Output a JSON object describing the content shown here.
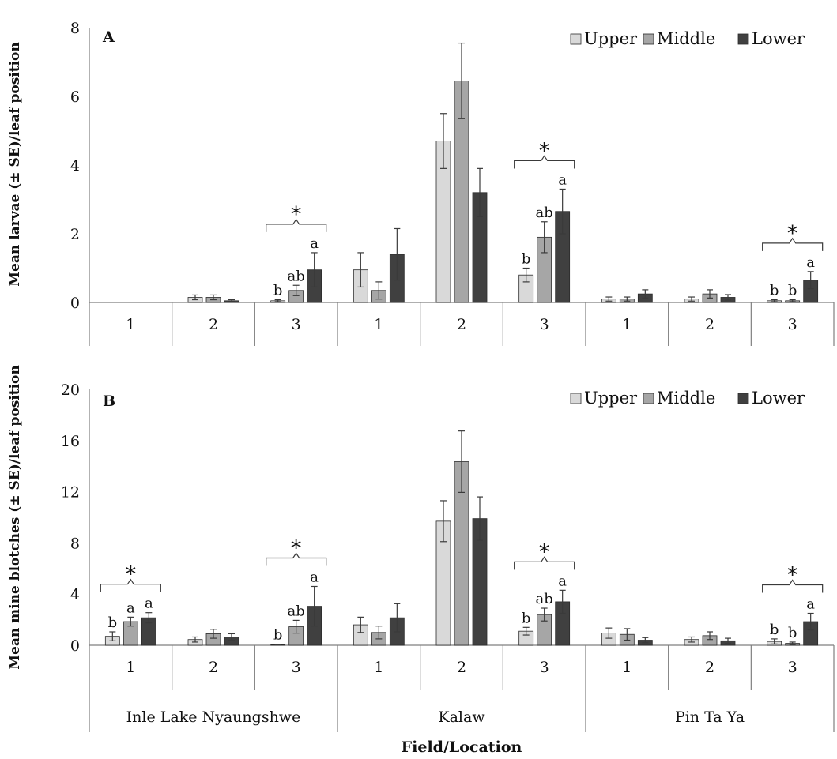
{
  "chart_data": [
    {
      "type": "bar",
      "panel_label": "A",
      "ylabel": "Mean larvae (± SE)/leaf position",
      "ylim": [
        0,
        8
      ],
      "yticks": [
        "0",
        "2",
        "4",
        "6",
        "8"
      ],
      "categories": [
        "1",
        "2",
        "3",
        "1",
        "2",
        "3",
        "1",
        "2",
        "3"
      ],
      "legend_position": "top-right",
      "series": [
        {
          "name": "Upper",
          "color": "#d9d9d9",
          "values": [
            0,
            0.15,
            0.05,
            0.95,
            4.7,
            0.8,
            0.1,
            0.1,
            0.05
          ],
          "errors": [
            0,
            0.07,
            0.03,
            0.5,
            0.8,
            0.2,
            0.06,
            0.06,
            0.03
          ]
        },
        {
          "name": "Middle",
          "color": "#a6a6a6",
          "values": [
            0,
            0.15,
            0.35,
            0.35,
            6.45,
            1.9,
            0.1,
            0.25,
            0.05
          ],
          "errors": [
            0,
            0.07,
            0.15,
            0.25,
            1.1,
            0.45,
            0.06,
            0.12,
            0.03
          ]
        },
        {
          "name": "Lower",
          "color": "#404040",
          "values": [
            0,
            0.05,
            0.95,
            1.4,
            3.2,
            2.65,
            0.25,
            0.15,
            0.65
          ],
          "errors": [
            0,
            0.03,
            0.5,
            0.75,
            0.7,
            0.65,
            0.12,
            0.08,
            0.25
          ]
        }
      ],
      "significance": [
        {
          "category_index": 2,
          "star": "*",
          "letters": [
            "b",
            "ab",
            "a"
          ]
        },
        {
          "category_index": 5,
          "star": "*",
          "letters": [
            "b",
            "ab",
            "a"
          ]
        },
        {
          "category_index": 8,
          "star": "*",
          "letters": [
            "b",
            "b",
            "a"
          ]
        }
      ]
    },
    {
      "type": "bar",
      "panel_label": "B",
      "ylabel": "Mean mine blotches (± SE)/leaf position",
      "xlabel": "Field/Location",
      "ylim": [
        0,
        20
      ],
      "yticks": [
        "0",
        "4",
        "8",
        "12",
        "16",
        "20"
      ],
      "categories": [
        "1",
        "2",
        "3",
        "1",
        "2",
        "3",
        "1",
        "2",
        "3"
      ],
      "groups": [
        {
          "name": "Inle Lake Nyaungshwe",
          "span": 3
        },
        {
          "name": "Kalaw",
          "span": 3
        },
        {
          "name": "Pin Ta Ya",
          "span": 3
        }
      ],
      "legend_position": "top-right",
      "series": [
        {
          "name": "Upper",
          "color": "#d9d9d9",
          "values": [
            0.7,
            0.45,
            0.05,
            1.6,
            9.7,
            1.1,
            0.95,
            0.45,
            0.3
          ],
          "errors": [
            0.35,
            0.2,
            0.03,
            0.6,
            1.6,
            0.3,
            0.4,
            0.2,
            0.2
          ]
        },
        {
          "name": "Middle",
          "color": "#a6a6a6",
          "values": [
            1.85,
            0.9,
            1.45,
            1.0,
            14.35,
            2.4,
            0.85,
            0.75,
            0.15
          ],
          "errors": [
            0.35,
            0.35,
            0.5,
            0.5,
            2.4,
            0.5,
            0.45,
            0.3,
            0.1
          ]
        },
        {
          "name": "Lower",
          "color": "#404040",
          "values": [
            2.15,
            0.65,
            3.05,
            2.15,
            9.9,
            3.4,
            0.4,
            0.35,
            1.85
          ],
          "errors": [
            0.4,
            0.25,
            1.55,
            1.1,
            1.7,
            0.9,
            0.2,
            0.2,
            0.65
          ]
        }
      ],
      "significance": [
        {
          "category_index": 0,
          "star": "*",
          "letters": [
            "b",
            "a",
            "a"
          ]
        },
        {
          "category_index": 2,
          "star": "*",
          "letters": [
            "b",
            "ab",
            "a"
          ]
        },
        {
          "category_index": 5,
          "star": "*",
          "letters": [
            "b",
            "ab",
            "a"
          ]
        },
        {
          "category_index": 8,
          "star": "*",
          "letters": [
            "b",
            "b",
            "a"
          ]
        }
      ]
    }
  ]
}
